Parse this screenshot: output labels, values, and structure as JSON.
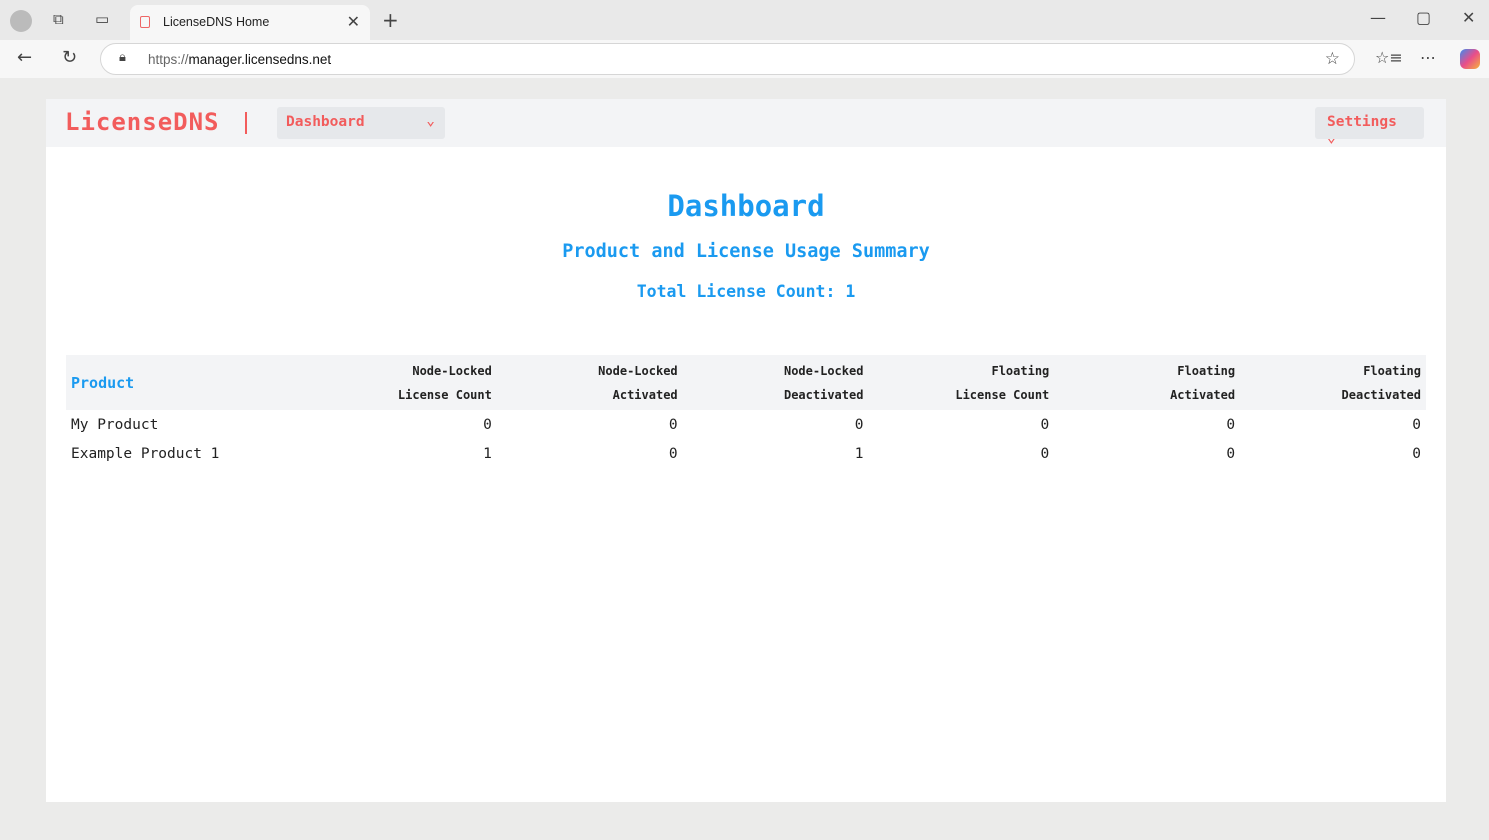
{
  "browser": {
    "tab_title": "LicenseDNS Home",
    "url_scheme": "https://",
    "url_host": "manager.licensedns.net"
  },
  "nav": {
    "logo": "LicenseDNS",
    "menu": "Dashboard",
    "settings": "Settings"
  },
  "main": {
    "title": "Dashboard",
    "subtitle": "Product and License Usage Summary",
    "total": "Total License Count: 1"
  },
  "table": {
    "headers": [
      [
        "Product",
        ""
      ],
      [
        "Node-Locked",
        "License Count"
      ],
      [
        "Node-Locked",
        "Activated"
      ],
      [
        "Node-Locked",
        "Deactivated"
      ],
      [
        "Floating",
        "License Count"
      ],
      [
        "Floating",
        "Activated"
      ],
      [
        "Floating",
        "Deactivated"
      ]
    ],
    "rows": [
      [
        "My Product",
        "0",
        "0",
        "0",
        "0",
        "0",
        "0"
      ],
      [
        "Example Product 1",
        "1",
        "0",
        "1",
        "0",
        "0",
        "0"
      ]
    ]
  }
}
